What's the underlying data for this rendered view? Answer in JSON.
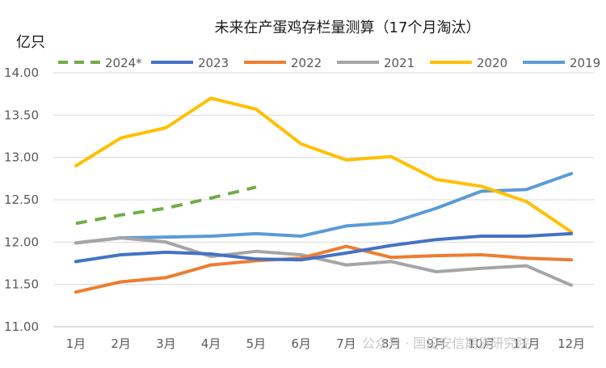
{
  "chart_data": {
    "type": "line",
    "title": "未来在产蛋鸡存栏量测算（17个月淘汰）",
    "unit_label": "亿只",
    "xlabel": "",
    "ylabel": "",
    "categories": [
      "1月",
      "2月",
      "3月",
      "4月",
      "5月",
      "6月",
      "7月",
      "8月",
      "9月",
      "10月",
      "11月",
      "12月"
    ],
    "ylim": [
      11.0,
      14.0
    ],
    "yticks": [
      "14.00",
      "13.50",
      "13.00",
      "12.50",
      "12.00",
      "11.50",
      "11.00"
    ],
    "ytick_values": [
      14.0,
      13.5,
      13.0,
      12.5,
      12.0,
      11.5,
      11.0
    ],
    "grid": true,
    "legend_position": "top",
    "series": [
      {
        "name": "2024*",
        "color": "#70ad47",
        "dashed": true,
        "values": [
          12.22,
          12.32,
          12.4,
          12.52,
          12.65,
          null,
          null,
          null,
          null,
          null,
          null,
          null
        ]
      },
      {
        "name": "2023",
        "color": "#4472c4",
        "dashed": false,
        "values": [
          11.77,
          11.85,
          11.88,
          11.86,
          11.8,
          11.79,
          11.87,
          11.96,
          12.03,
          12.07,
          12.07,
          12.1
        ]
      },
      {
        "name": "2022",
        "color": "#ed7d31",
        "dashed": false,
        "values": [
          11.41,
          11.53,
          11.58,
          11.73,
          11.78,
          11.81,
          11.95,
          11.82,
          11.84,
          11.85,
          11.81,
          11.79
        ]
      },
      {
        "name": "2021",
        "color": "#a5a5a5",
        "dashed": false,
        "values": [
          11.99,
          12.05,
          12.0,
          11.83,
          11.89,
          11.85,
          11.73,
          11.77,
          11.65,
          11.69,
          11.72,
          11.49
        ]
      },
      {
        "name": "2020",
        "color": "#ffc000",
        "dashed": false,
        "values": [
          12.9,
          13.23,
          13.35,
          13.7,
          13.57,
          13.16,
          12.97,
          13.01,
          12.74,
          12.66,
          12.48,
          12.12
        ]
      },
      {
        "name": "2019",
        "color": "#5b9bd5",
        "dashed": false,
        "values": [
          11.99,
          12.05,
          12.06,
          12.07,
          12.1,
          12.07,
          12.19,
          12.23,
          12.4,
          12.6,
          12.62,
          12.81
        ]
      }
    ]
  },
  "watermark": "公众号 · 国投安信期货研究院"
}
